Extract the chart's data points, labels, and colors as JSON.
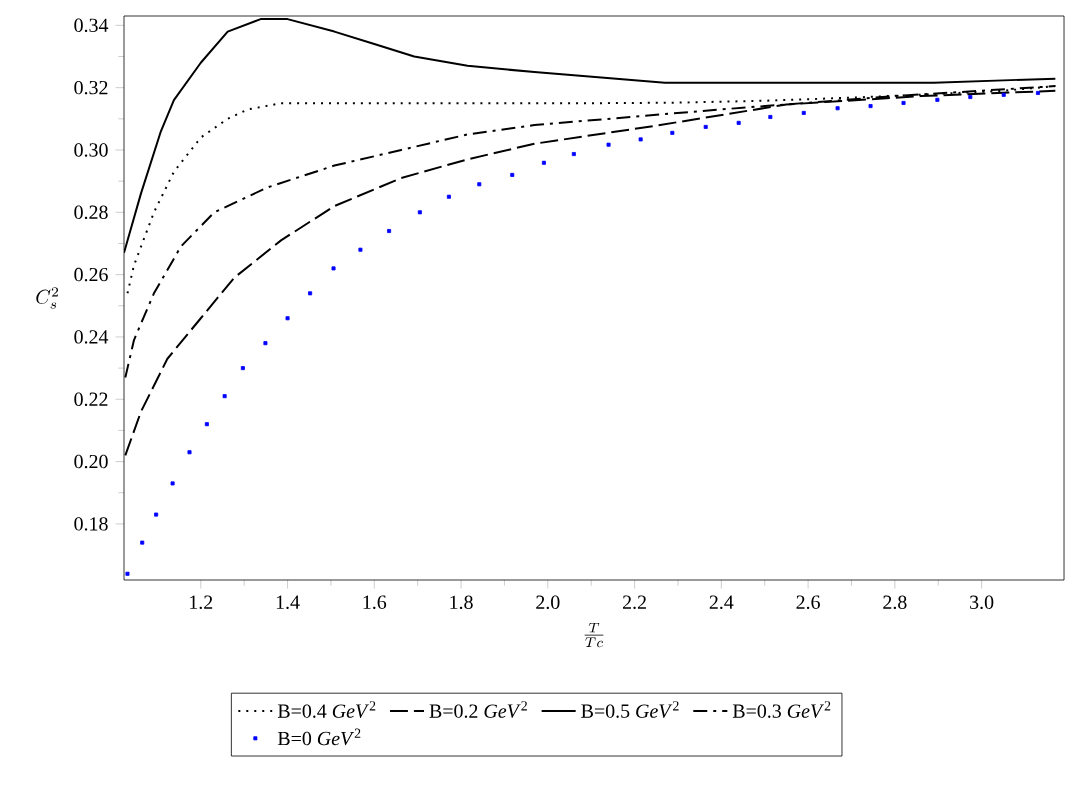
{
  "chart_data": {
    "type": "line",
    "xlabel": "\\frac{T}{Tc}",
    "ylabel": "C_s^2",
    "xlim": [
      1.023,
      3.19
    ],
    "ylim": [
      0.162,
      0.343
    ],
    "xticks": [
      1.2,
      1.4,
      1.6,
      1.8,
      {
        "value": 2,
        "label": "2.0"
      },
      2.2,
      2.4,
      2.6,
      2.8,
      {
        "value": 3,
        "label": "3.0"
      }
    ],
    "yticks": [
      0.18,
      {
        "value": 0.2,
        "label": "0.20"
      },
      0.22,
      0.24,
      0.26,
      0.28,
      {
        "value": 0.3,
        "label": "0.30"
      },
      0.32,
      0.34
    ],
    "legend": "bottom",
    "series": [
      {
        "name": "B=0.4 *GeV*$^{2}$",
        "color": "#000000",
        "line_style": "dotted",
        "x": [
          1.031,
          1.046,
          1.092,
          1.138,
          1.2,
          1.262,
          1.308,
          1.385,
          1.5,
          1.8,
          2.1,
          2.3,
          2.5,
          2.7,
          2.9,
          3.05,
          3.17
        ],
        "values": [
          0.254,
          0.263,
          0.28,
          0.293,
          0.304,
          0.31,
          0.313,
          0.315,
          0.315,
          0.315,
          0.315,
          0.3152,
          0.3158,
          0.3168,
          0.318,
          0.319,
          0.3205
        ]
      },
      {
        "name": "B=0.2 *GeV*$^{2}$",
        "color": "#000000",
        "line_style": "dashed",
        "x": [
          1.026,
          1.062,
          1.123,
          1.2,
          1.277,
          1.385,
          1.508,
          1.662,
          1.815,
          1.969,
          2.245,
          2.55,
          2.86,
          3.17
        ],
        "values": [
          0.202,
          0.216,
          0.233,
          0.246,
          0.259,
          0.271,
          0.282,
          0.291,
          0.297,
          0.302,
          0.3077,
          0.3146,
          0.3173,
          0.319
        ]
      },
      {
        "name": "B=0.5 *GeV*$^{2}$",
        "color": "#000000",
        "line_style": "solid",
        "x": [
          1.023,
          1.062,
          1.108,
          1.138,
          1.2,
          1.262,
          1.338,
          1.4,
          1.508,
          1.6,
          1.692,
          1.815,
          1.969,
          2.27,
          2.89,
          3.17
        ],
        "values": [
          0.267,
          0.286,
          0.306,
          0.316,
          0.328,
          0.338,
          0.342,
          0.342,
          0.338,
          0.334,
          0.33,
          0.327,
          0.325,
          0.3216,
          0.3216,
          0.3229
        ]
      },
      {
        "name": "B=0.3 *GeV*$^{2}$",
        "color": "#000000",
        "line_style": "dashdotted",
        "x": [
          1.026,
          1.046,
          1.092,
          1.154,
          1.231,
          1.354,
          1.508,
          1.662,
          1.815,
          1.969,
          2.398,
          2.8,
          3.17
        ],
        "values": [
          0.227,
          0.239,
          0.254,
          0.269,
          0.28,
          0.288,
          0.295,
          0.3,
          0.305,
          0.308,
          0.313,
          0.3173,
          0.3205
        ]
      },
      {
        "name": "B=0 *GeV*$^{2}$",
        "color": "#0000ff",
        "type": "scatter",
        "marker": "square",
        "x": [
          1.031,
          1.065,
          1.097,
          1.135,
          1.174,
          1.214,
          1.255,
          1.297,
          1.349,
          1.4,
          1.452,
          1.506,
          1.568,
          1.634,
          1.705,
          1.772,
          1.842,
          1.918,
          1.991,
          2.06,
          2.14,
          2.214,
          2.287,
          2.364,
          2.44,
          2.513,
          2.59,
          2.668,
          2.744,
          2.82,
          2.898,
          2.974,
          3.051,
          3.13
        ],
        "values": [
          0.164,
          0.174,
          0.183,
          0.193,
          0.203,
          0.212,
          0.221,
          0.23,
          0.238,
          0.246,
          0.254,
          0.262,
          0.268,
          0.274,
          0.28,
          0.285,
          0.289,
          0.292,
          0.2959,
          0.2987,
          0.3017,
          0.3034,
          0.3055,
          0.3074,
          0.3087,
          0.3106,
          0.3119,
          0.3134,
          0.3141,
          0.3151,
          0.3161,
          0.317,
          0.3177,
          0.3183
        ]
      }
    ]
  }
}
